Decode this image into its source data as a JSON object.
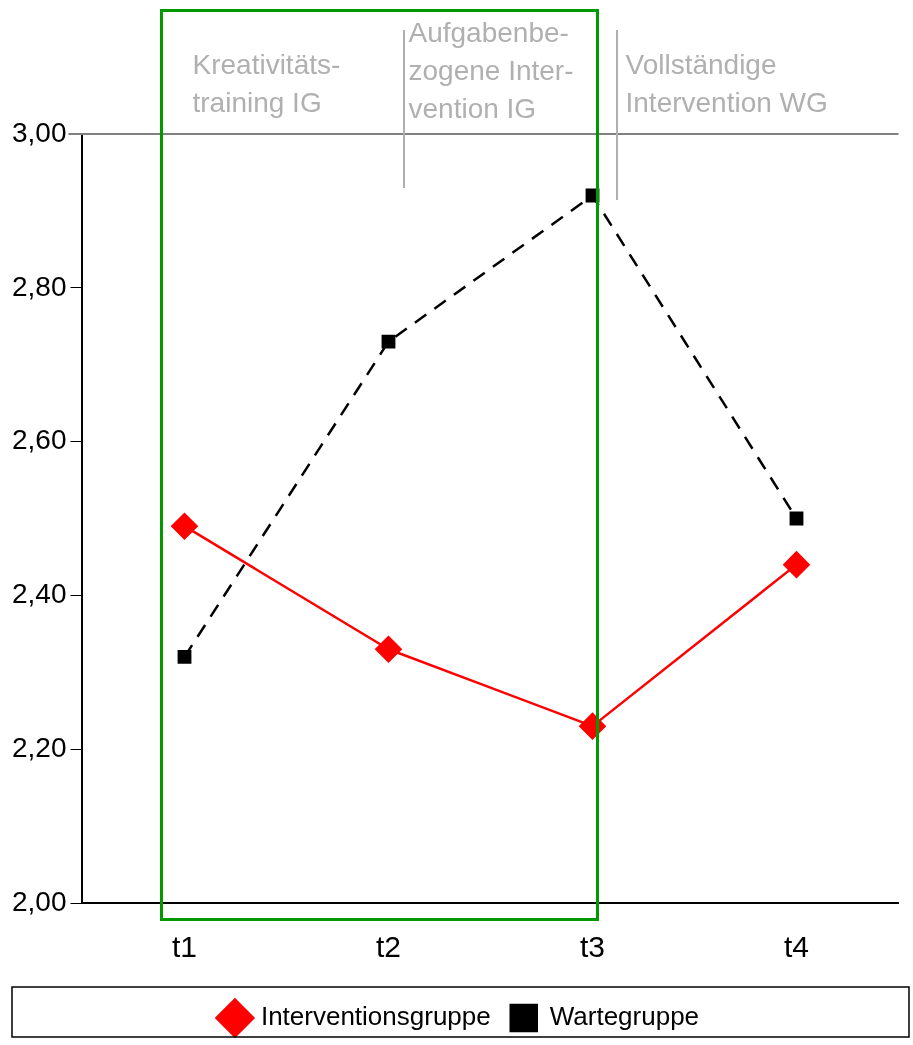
{
  "chart_data": {
    "type": "line",
    "categories": [
      "t1",
      "t2",
      "t3",
      "t4"
    ],
    "series": [
      {
        "name": "Interventionsgruppe",
        "color": "#ff0000",
        "values": [
          2.49,
          2.33,
          2.23,
          2.44
        ],
        "marker": "diamond",
        "line_style": "solid"
      },
      {
        "name": "Wartegruppe",
        "color": "#000000",
        "values": [
          2.32,
          2.73,
          2.92,
          2.5
        ],
        "marker": "square",
        "line_style": "dashed"
      }
    ],
    "ylim": [
      2,
      3
    ],
    "yticks": [
      {
        "value": 2,
        "label": "2,00"
      },
      {
        "value": 2.2,
        "label": "2,20"
      },
      {
        "value": 2.4,
        "label": "2,40"
      },
      {
        "value": 2.6,
        "label": "2,60"
      },
      {
        "value": 2.8,
        "label": "2,80"
      },
      {
        "value": 3,
        "label": "3,00"
      }
    ],
    "grid": false,
    "legend": "bottom",
    "ref_lines": [
      {
        "axis": "y",
        "value": 3,
        "color": "#808080"
      }
    ],
    "annotations": [
      "Kreativitäts-\ntraining IG",
      "Aufgabenbe-\nzogene Inter-\nvention IG",
      "Vollständige\nIntervention WG"
    ]
  }
}
